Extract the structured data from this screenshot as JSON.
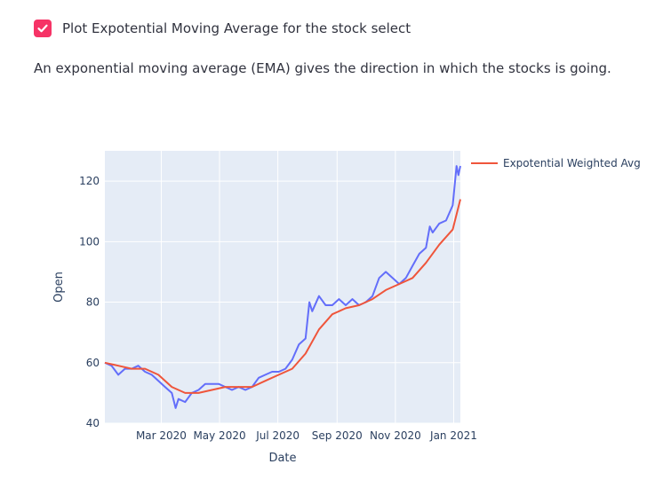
{
  "checkbox": {
    "label": "Plot Expotential Moving Average for the stock select",
    "checked": true
  },
  "description": "An exponential moving average (EMA) gives the direction in which the stocks is going.",
  "colors": {
    "accent": "#f63366",
    "open_line": "#636efa",
    "ema_line": "#ef553b",
    "plot_bg": "#e5ecf6",
    "grid": "#ffffff"
  },
  "chart_data": {
    "type": "line",
    "xlabel": "Date",
    "ylabel": "Open",
    "x_range": [
      "2020-01-02",
      "2021-01-08"
    ],
    "ylim": [
      40,
      130
    ],
    "x_ticks": [
      {
        "date": "2020-03-01",
        "label": "Mar 2020"
      },
      {
        "date": "2020-05-01",
        "label": "May 2020"
      },
      {
        "date": "2020-07-01",
        "label": "Jul 2020"
      },
      {
        "date": "2020-09-01",
        "label": "Sep 2020"
      },
      {
        "date": "2020-11-01",
        "label": "Nov 2020"
      },
      {
        "date": "2021-01-01",
        "label": "Jan 2021"
      }
    ],
    "y_ticks": [
      40,
      60,
      80,
      100,
      120
    ],
    "grid": true,
    "legend": {
      "position": "top-right",
      "shown": [
        "Expotential Weighted Avg"
      ]
    },
    "series": [
      {
        "name": "Open",
        "color": "#636efa",
        "points": [
          [
            "2020-01-02",
            60
          ],
          [
            "2020-01-09",
            59
          ],
          [
            "2020-01-16",
            56
          ],
          [
            "2020-01-23",
            58
          ],
          [
            "2020-01-30",
            58
          ],
          [
            "2020-02-06",
            59
          ],
          [
            "2020-02-13",
            57
          ],
          [
            "2020-02-20",
            56
          ],
          [
            "2020-02-27",
            54
          ],
          [
            "2020-03-05",
            52
          ],
          [
            "2020-03-12",
            50
          ],
          [
            "2020-03-16",
            45
          ],
          [
            "2020-03-19",
            48
          ],
          [
            "2020-03-26",
            47
          ],
          [
            "2020-04-02",
            50
          ],
          [
            "2020-04-09",
            51
          ],
          [
            "2020-04-16",
            53
          ],
          [
            "2020-04-23",
            53
          ],
          [
            "2020-04-30",
            53
          ],
          [
            "2020-05-07",
            52
          ],
          [
            "2020-05-14",
            51
          ],
          [
            "2020-05-21",
            52
          ],
          [
            "2020-05-28",
            51
          ],
          [
            "2020-06-04",
            52
          ],
          [
            "2020-06-11",
            55
          ],
          [
            "2020-06-18",
            56
          ],
          [
            "2020-06-25",
            57
          ],
          [
            "2020-07-02",
            57
          ],
          [
            "2020-07-09",
            58
          ],
          [
            "2020-07-16",
            61
          ],
          [
            "2020-07-23",
            66
          ],
          [
            "2020-07-30",
            68
          ],
          [
            "2020-08-03",
            80
          ],
          [
            "2020-08-06",
            77
          ],
          [
            "2020-08-13",
            82
          ],
          [
            "2020-08-20",
            79
          ],
          [
            "2020-08-27",
            79
          ],
          [
            "2020-09-03",
            81
          ],
          [
            "2020-09-10",
            79
          ],
          [
            "2020-09-17",
            81
          ],
          [
            "2020-09-24",
            79
          ],
          [
            "2020-10-01",
            80
          ],
          [
            "2020-10-08",
            82
          ],
          [
            "2020-10-15",
            88
          ],
          [
            "2020-10-22",
            90
          ],
          [
            "2020-10-29",
            88
          ],
          [
            "2020-11-05",
            86
          ],
          [
            "2020-11-12",
            88
          ],
          [
            "2020-11-19",
            92
          ],
          [
            "2020-11-26",
            96
          ],
          [
            "2020-12-03",
            98
          ],
          [
            "2020-12-07",
            105
          ],
          [
            "2020-12-10",
            103
          ],
          [
            "2020-12-17",
            106
          ],
          [
            "2020-12-24",
            107
          ],
          [
            "2020-12-31",
            112
          ],
          [
            "2021-01-04",
            125
          ],
          [
            "2021-01-06",
            122
          ],
          [
            "2021-01-08",
            125
          ]
        ]
      },
      {
        "name": "Expotential Weighted Avg",
        "color": "#ef553b",
        "points": [
          [
            "2020-01-02",
            60
          ],
          [
            "2020-01-16",
            59
          ],
          [
            "2020-01-30",
            58
          ],
          [
            "2020-02-13",
            58
          ],
          [
            "2020-02-27",
            56
          ],
          [
            "2020-03-12",
            52
          ],
          [
            "2020-03-26",
            50
          ],
          [
            "2020-04-09",
            50
          ],
          [
            "2020-04-23",
            51
          ],
          [
            "2020-05-07",
            52
          ],
          [
            "2020-05-21",
            52
          ],
          [
            "2020-06-04",
            52
          ],
          [
            "2020-06-18",
            54
          ],
          [
            "2020-07-02",
            56
          ],
          [
            "2020-07-16",
            58
          ],
          [
            "2020-07-30",
            63
          ],
          [
            "2020-08-13",
            71
          ],
          [
            "2020-08-27",
            76
          ],
          [
            "2020-09-10",
            78
          ],
          [
            "2020-09-24",
            79
          ],
          [
            "2020-10-08",
            81
          ],
          [
            "2020-10-22",
            84
          ],
          [
            "2020-11-05",
            86
          ],
          [
            "2020-11-19",
            88
          ],
          [
            "2020-12-03",
            93
          ],
          [
            "2020-12-17",
            99
          ],
          [
            "2020-12-31",
            104
          ],
          [
            "2021-01-08",
            114
          ]
        ]
      }
    ]
  }
}
